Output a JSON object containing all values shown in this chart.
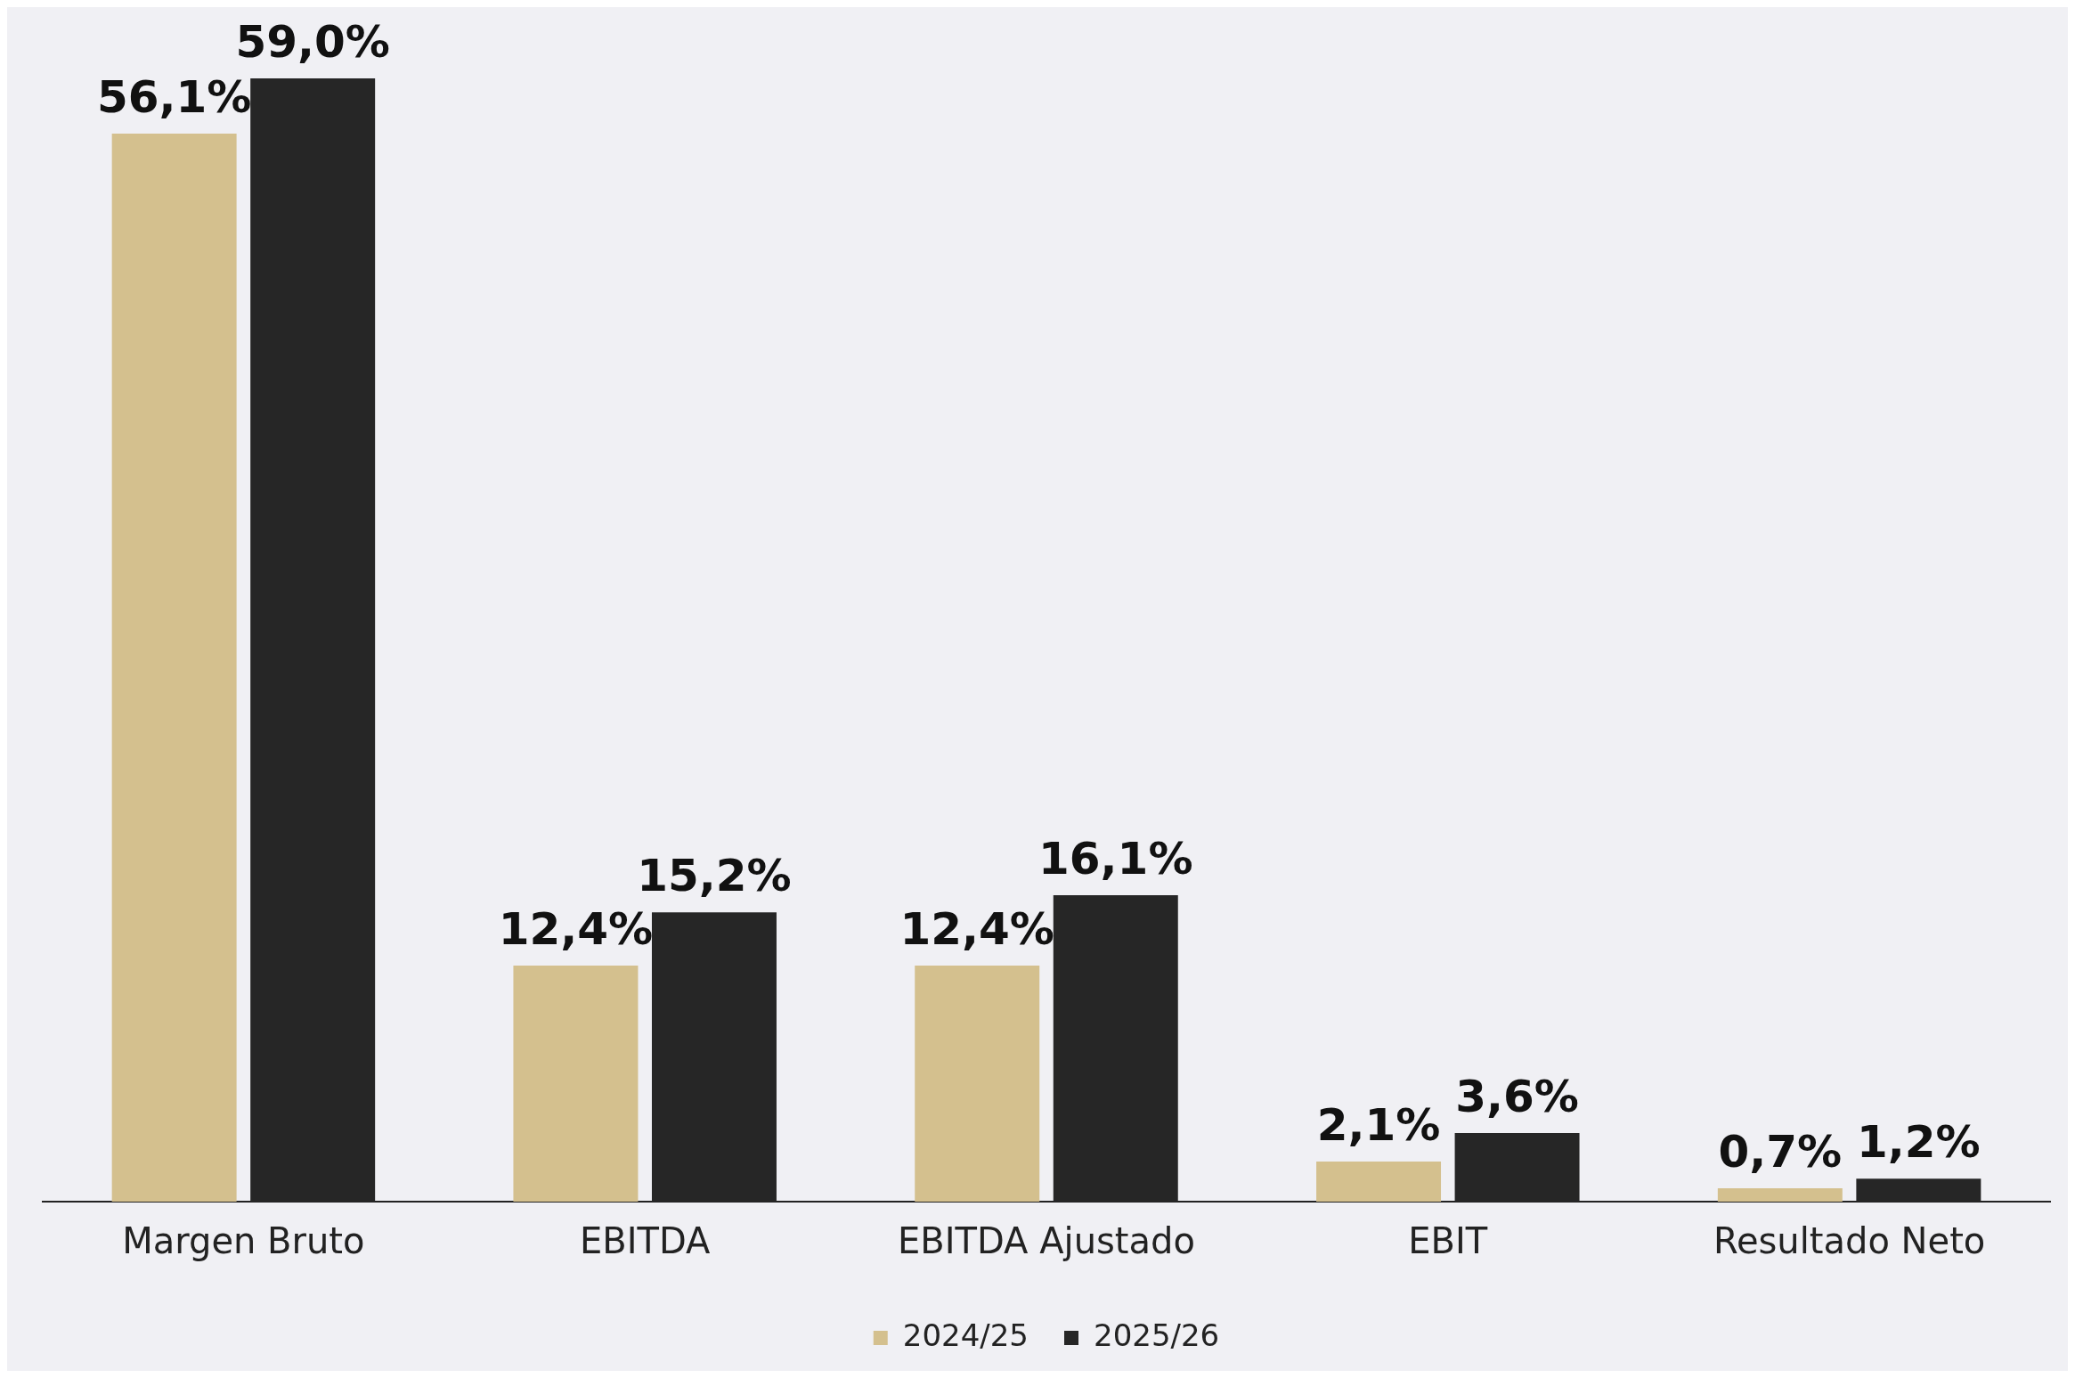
{
  "chart_data": {
    "type": "bar",
    "categories": [
      "Margen Bruto",
      "EBITDA",
      "EBITDA Ajustado",
      "EBIT",
      "Resultado Neto"
    ],
    "series": [
      {
        "name": "2024/25",
        "color": "#d4c08e",
        "values": [
          56.1,
          12.4,
          12.4,
          2.1,
          0.7
        ],
        "value_labels": [
          "56,1%",
          "12,4%",
          "12,4%",
          "2,1%",
          "0,7%"
        ]
      },
      {
        "name": "2025/26",
        "color": "#262626",
        "values": [
          59.0,
          15.2,
          16.1,
          3.6,
          1.2
        ],
        "value_labels": [
          "59,0%",
          "15,2%",
          "16,1%",
          "3,6%",
          "1,2%"
        ]
      }
    ],
    "legend": "bottom",
    "grid": false
  }
}
